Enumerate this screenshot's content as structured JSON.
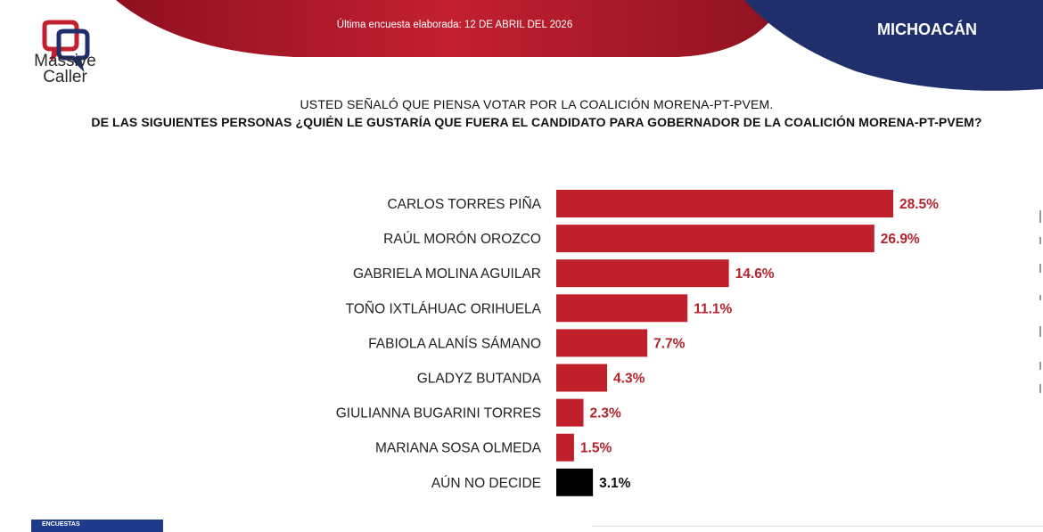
{
  "header": {
    "brand_line1": "Massive",
    "brand_line2": "Caller",
    "updated": "Última encuesta elaborada: 12 DE ABRIL DEL 2026",
    "region": "MICHOACÁN"
  },
  "question": {
    "line1": "USTED SEÑALÓ QUE PIENSA VOTAR POR LA COALICIÓN MORENA-PT-PVEM.",
    "line2": "DE LAS SIGUIENTES PERSONAS ¿QUIÉN LE GUSTARÍA QUE FUERA EL CANDIDATO PARA GOBERNADOR DE LA COALICIÓN MORENA-PT-PVEM?"
  },
  "footer": {
    "badge": "ENCUESTAS"
  },
  "colors": {
    "bar": "#c0202a",
    "bar_undecided": "#000000",
    "value_text": "#b3232c",
    "value_text_undecided": "#111111",
    "header_red": "#b81e2d",
    "header_navy": "#1f2f6b"
  },
  "chart_data": {
    "type": "bar",
    "orientation": "horizontal",
    "categories": [
      "CARLOS TORRES PIÑA",
      "RAÚL MORÓN OROZCO",
      "GABRIELA MOLINA AGUILAR",
      "TOÑO IXTLÁHUAC ORIHUELA",
      "FABIOLA ALANÍS SÁMANO",
      "GLADYZ BUTANDA",
      "GIULIANNA BUGARINI TORRES",
      "MARIANA SOSA OLMEDA",
      "AÚN NO DECIDE"
    ],
    "values": [
      28.5,
      26.9,
      14.6,
      11.1,
      7.7,
      4.3,
      2.3,
      1.5,
      3.1
    ],
    "value_labels": [
      "28.5%",
      "26.9%",
      "14.6%",
      "11.1%",
      "7.7%",
      "4.3%",
      "2.3%",
      "1.5%",
      "3.1%"
    ],
    "xlim": [
      0,
      28.5
    ],
    "grid": false,
    "legend": "none"
  }
}
